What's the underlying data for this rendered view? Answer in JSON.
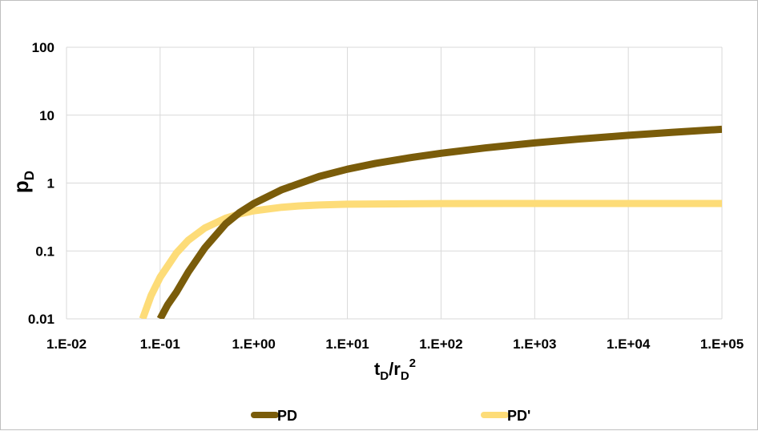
{
  "chart_data": {
    "type": "line",
    "title": "",
    "xlabel": {
      "main": "t",
      "sub1": "D",
      "slash": "/r",
      "sub2": "D",
      "sup": "2"
    },
    "ylabel": {
      "main": "p",
      "sub": "D"
    },
    "x_scale": "log",
    "y_scale": "log",
    "xlim": [
      0.01,
      100000
    ],
    "ylim": [
      0.01,
      100
    ],
    "x_tick_values": [
      0.01,
      0.1,
      1,
      10,
      100,
      1000,
      10000,
      100000
    ],
    "x_tick_labels": [
      "1.E-02",
      "1.E-01",
      "1.E+00",
      "1.E+01",
      "1.E+02",
      "1.E+03",
      "1.E+04",
      "1.E+05"
    ],
    "y_tick_values": [
      0.01,
      0.1,
      1,
      10,
      100
    ],
    "y_tick_labels": [
      "0.01",
      "0.1",
      "1",
      "10",
      "100"
    ],
    "grid": true,
    "legend": "bottom",
    "series": [
      {
        "name": "PD",
        "color": "#7a5c0a",
        "x": [
          0.1,
          0.12,
          0.15,
          0.2,
          0.3,
          0.5,
          0.7,
          1,
          2,
          5,
          10,
          20,
          50,
          100,
          300,
          1000,
          3000,
          10000,
          30000,
          100000
        ],
        "y": [
          0.01,
          0.016,
          0.025,
          0.049,
          0.111,
          0.25,
          0.365,
          0.5,
          0.8,
          1.25,
          1.6,
          1.95,
          2.4,
          2.75,
          3.3,
          3.9,
          4.45,
          5.05,
          5.6,
          6.2
        ]
      },
      {
        "name": "PD'",
        "color": "#fddc78",
        "x": [
          0.065,
          0.08,
          0.1,
          0.15,
          0.2,
          0.3,
          0.5,
          0.7,
          1,
          2,
          3,
          5,
          10,
          100,
          1000,
          10000,
          100000
        ],
        "y": [
          0.01,
          0.022,
          0.041,
          0.094,
          0.144,
          0.218,
          0.303,
          0.35,
          0.39,
          0.44,
          0.46,
          0.475,
          0.488,
          0.499,
          0.5,
          0.5,
          0.5
        ]
      }
    ]
  }
}
